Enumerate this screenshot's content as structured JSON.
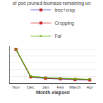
{
  "chart_data": {
    "type": "line",
    "title": "of pod pruned biomass remaining un",
    "x_label": "Month elapsed",
    "categories": [
      "Nov",
      "Dec",
      "Jan",
      "Feb",
      "March",
      "Apr"
    ],
    "series": [
      {
        "name": "tree+crop",
        "color": "#3333CC",
        "marker": "square",
        "colors": [
          "#CC2222",
          "#CC2222",
          "#CC2222",
          "#CC2222",
          "#CC2222",
          "#CC2222"
        ],
        "values": [
          100,
          18,
          14,
          12,
          10,
          9
        ]
      },
      {
        "name": "Cropping",
        "color": "#CC2222",
        "marker": "square",
        "values": [
          100,
          19,
          15,
          13,
          11,
          10
        ]
      },
      {
        "name": "Fal",
        "color": "#55AA00",
        "marker": "triangle-up",
        "values": [
          100,
          20,
          16,
          14,
          12,
          11
        ]
      }
    ],
    "ylim": [
      0,
      110
    ],
    "yticks": [
      0,
      20,
      40,
      60,
      80,
      100
    ],
    "grid": true,
    "legend": "top",
    "tick_labels": "x"
  }
}
